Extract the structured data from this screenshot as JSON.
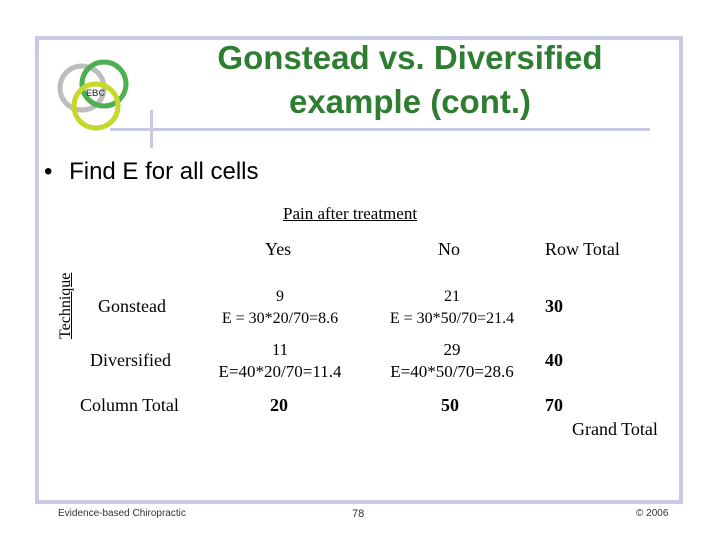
{
  "slide": {
    "title_line1": "Gonstead vs. Diversified",
    "title_line2": "example (cont.)",
    "logo_text": "EBC",
    "bullet": "Find E for all cells"
  },
  "table": {
    "header": "Pain after treatment",
    "row_axis": "Technique",
    "col_yes": "Yes",
    "col_no": "No",
    "col_row_total": "Row Total",
    "rows": [
      {
        "label": "Gonstead",
        "yes_obs": "9",
        "yes_exp": "E = 30*20/70=8.6",
        "no_obs": "21",
        "no_exp": "E = 30*50/70=21.4",
        "row_total": "30"
      },
      {
        "label": "Diversified",
        "yes_obs": "11",
        "yes_exp": "E=40*20/70=11.4",
        "no_obs": "29",
        "no_exp": "E=40*50/70=28.6",
        "row_total": "40"
      }
    ],
    "column_total_label": "Column Total",
    "column_total_yes": "20",
    "column_total_no": "50",
    "grand_total_value": "70",
    "grand_total_label": "Grand Total"
  },
  "footer": {
    "left": "Evidence-based Chiropractic",
    "page": "78",
    "right": "© 2006"
  },
  "colors": {
    "title": "#2e7d32",
    "frame": "#c9c9e4",
    "logo_green": "#4caf50",
    "logo_yellow": "#c6d82a",
    "logo_grey": "#bdbdbd"
  }
}
